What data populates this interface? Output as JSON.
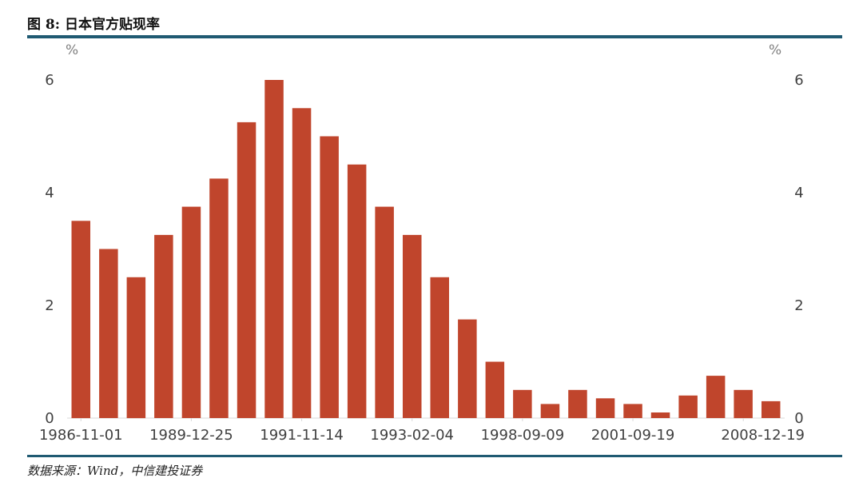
{
  "figure": {
    "title": "图 8:  日本官方贴现率",
    "source": "数据来源：Wind，中信建投证券"
  },
  "colors": {
    "bar": "#c0452c",
    "rule": "#1f5a72",
    "axis": "#d9d9d9"
  },
  "chart_data": {
    "type": "bar",
    "title": "日本官方贴现率",
    "ylabel_left": "%",
    "ylabel_right": "%",
    "ylim": [
      0,
      6
    ],
    "yticks": [
      0,
      2,
      4,
      6
    ],
    "grid": false,
    "legend": "none",
    "visible_xtick_labels": [
      "1986-11-01",
      "1989-12-25",
      "1991-11-14",
      "1993-02-04",
      "1998-09-09",
      "2001-09-19",
      "2008-12-19"
    ],
    "values": [
      3.5,
      3.0,
      2.5,
      3.25,
      3.75,
      4.25,
      5.25,
      6.0,
      5.5,
      5.0,
      4.5,
      3.75,
      3.25,
      2.5,
      1.75,
      1.0,
      0.5,
      0.25,
      0.5,
      0.35,
      0.25,
      0.1,
      0.4,
      0.75,
      0.5,
      0.3
    ]
  }
}
